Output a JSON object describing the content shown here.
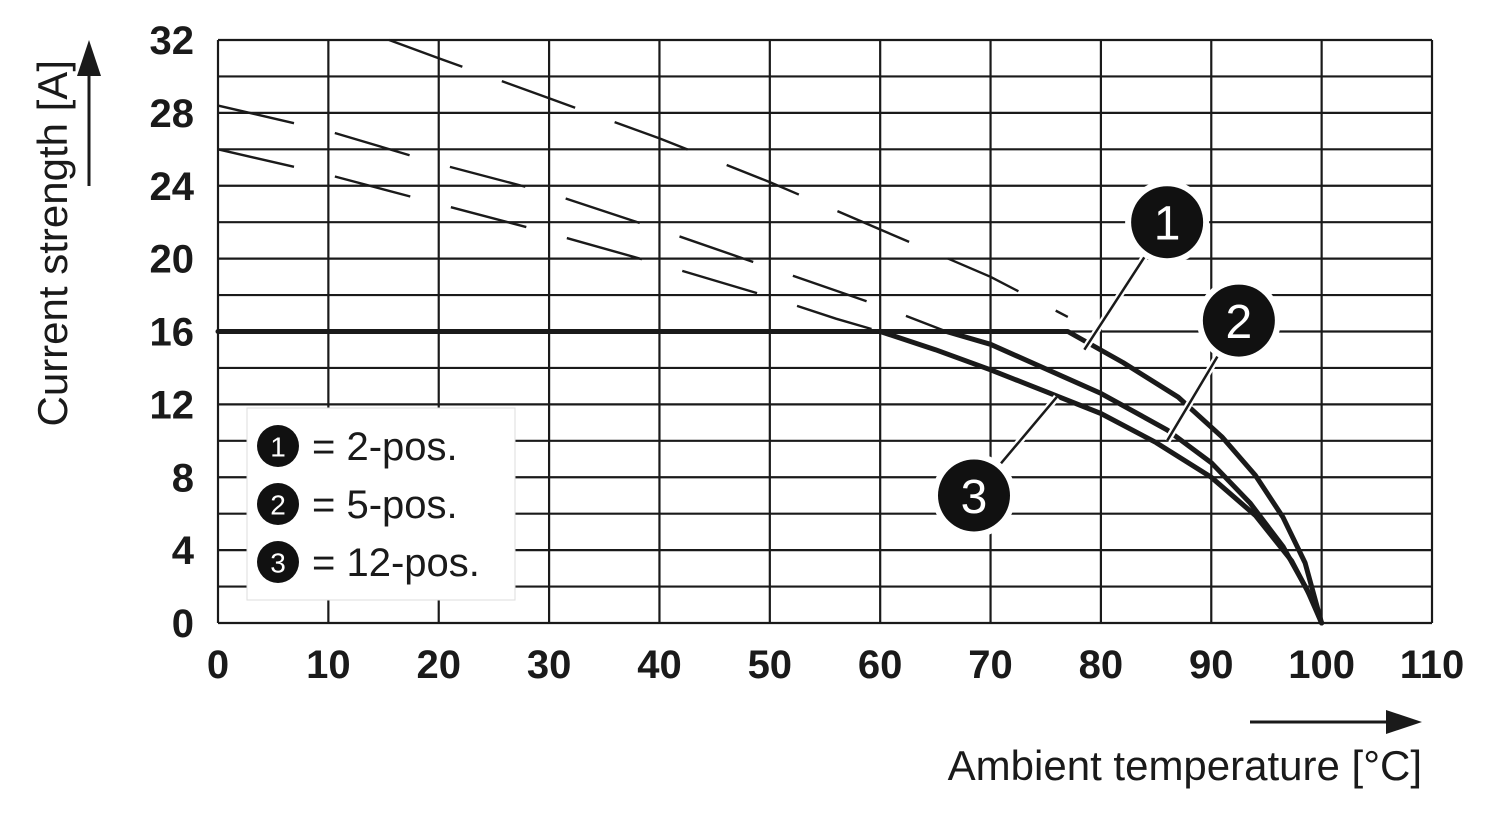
{
  "chart_data": {
    "type": "line",
    "title": "",
    "xlabel": "Ambient temperature [°C]",
    "ylabel": "Current strength [A]",
    "xlim": [
      0,
      110
    ],
    "ylim": [
      0,
      32
    ],
    "x_ticks": [
      "0",
      "10",
      "20",
      "30",
      "40",
      "50",
      "60",
      "70",
      "80",
      "90",
      "100",
      "110"
    ],
    "y_ticks": [
      "0",
      "4",
      "8",
      "12",
      "16",
      "20",
      "24",
      "28",
      "32"
    ],
    "grid": {
      "x_step": 10,
      "y_step": 2
    },
    "legend_position": "bottom-left",
    "legend": [
      {
        "marker": "1",
        "text": "= 2-pos."
      },
      {
        "marker": "2",
        "text": "= 5-pos."
      },
      {
        "marker": "3",
        "text": "= 12-pos."
      }
    ],
    "solid_limit": 16,
    "series": [
      {
        "marker": "1",
        "style": "solid+dashed",
        "dashed": [
          [
            15.5,
            32
          ],
          [
            20,
            31
          ],
          [
            30,
            28.8
          ],
          [
            40,
            26.6
          ],
          [
            50,
            24.2
          ],
          [
            60,
            21.6
          ],
          [
            70,
            19
          ],
          [
            77,
            16.8
          ]
        ],
        "solid": [
          [
            0,
            16
          ],
          [
            77,
            16
          ],
          [
            82,
            14.3
          ],
          [
            87,
            12.4
          ],
          [
            91,
            10.2
          ],
          [
            94,
            8.1
          ],
          [
            96.5,
            5.8
          ],
          [
            98.5,
            3.3
          ],
          [
            100,
            0
          ]
        ]
      },
      {
        "marker": "2",
        "style": "solid+dashed",
        "dashed": [
          [
            0,
            28.4
          ],
          [
            10,
            27
          ],
          [
            20,
            25.2
          ],
          [
            30,
            23.6
          ],
          [
            40,
            21.6
          ],
          [
            50,
            19.5
          ],
          [
            60,
            17.4
          ],
          [
            66,
            16
          ]
        ],
        "solid": [
          [
            66,
            16
          ],
          [
            70,
            15.3
          ],
          [
            80,
            12.6
          ],
          [
            86,
            10.6
          ],
          [
            90,
            8.8
          ],
          [
            93.5,
            6.6
          ],
          [
            96.5,
            4.2
          ],
          [
            98.7,
            1.8
          ],
          [
            100,
            0
          ]
        ]
      },
      {
        "marker": "3",
        "style": "solid+dashed",
        "dashed": [
          [
            0,
            26
          ],
          [
            10,
            24.6
          ],
          [
            20,
            23
          ],
          [
            30,
            21.4
          ],
          [
            40,
            19.7
          ],
          [
            50,
            17.9
          ],
          [
            56,
            16.7
          ],
          [
            60,
            16
          ]
        ],
        "solid": [
          [
            60,
            16
          ],
          [
            65,
            15
          ],
          [
            70,
            13.9
          ],
          [
            75,
            12.7
          ],
          [
            80,
            11.5
          ],
          [
            85,
            9.9
          ],
          [
            90,
            8
          ],
          [
            94,
            5.9
          ],
          [
            97.3,
            3.4
          ],
          [
            99.2,
            1.2
          ],
          [
            100,
            0
          ]
        ]
      }
    ],
    "callouts": [
      {
        "marker": "1",
        "x": 86,
        "y": 22,
        "points_to": [
          78.5,
          15
        ]
      },
      {
        "marker": "2",
        "x": 92.5,
        "y": 16.6,
        "points_to": [
          86,
          10
        ]
      },
      {
        "marker": "3",
        "x": 68.5,
        "y": 7,
        "points_to": [
          76,
          12.4
        ]
      }
    ]
  }
}
